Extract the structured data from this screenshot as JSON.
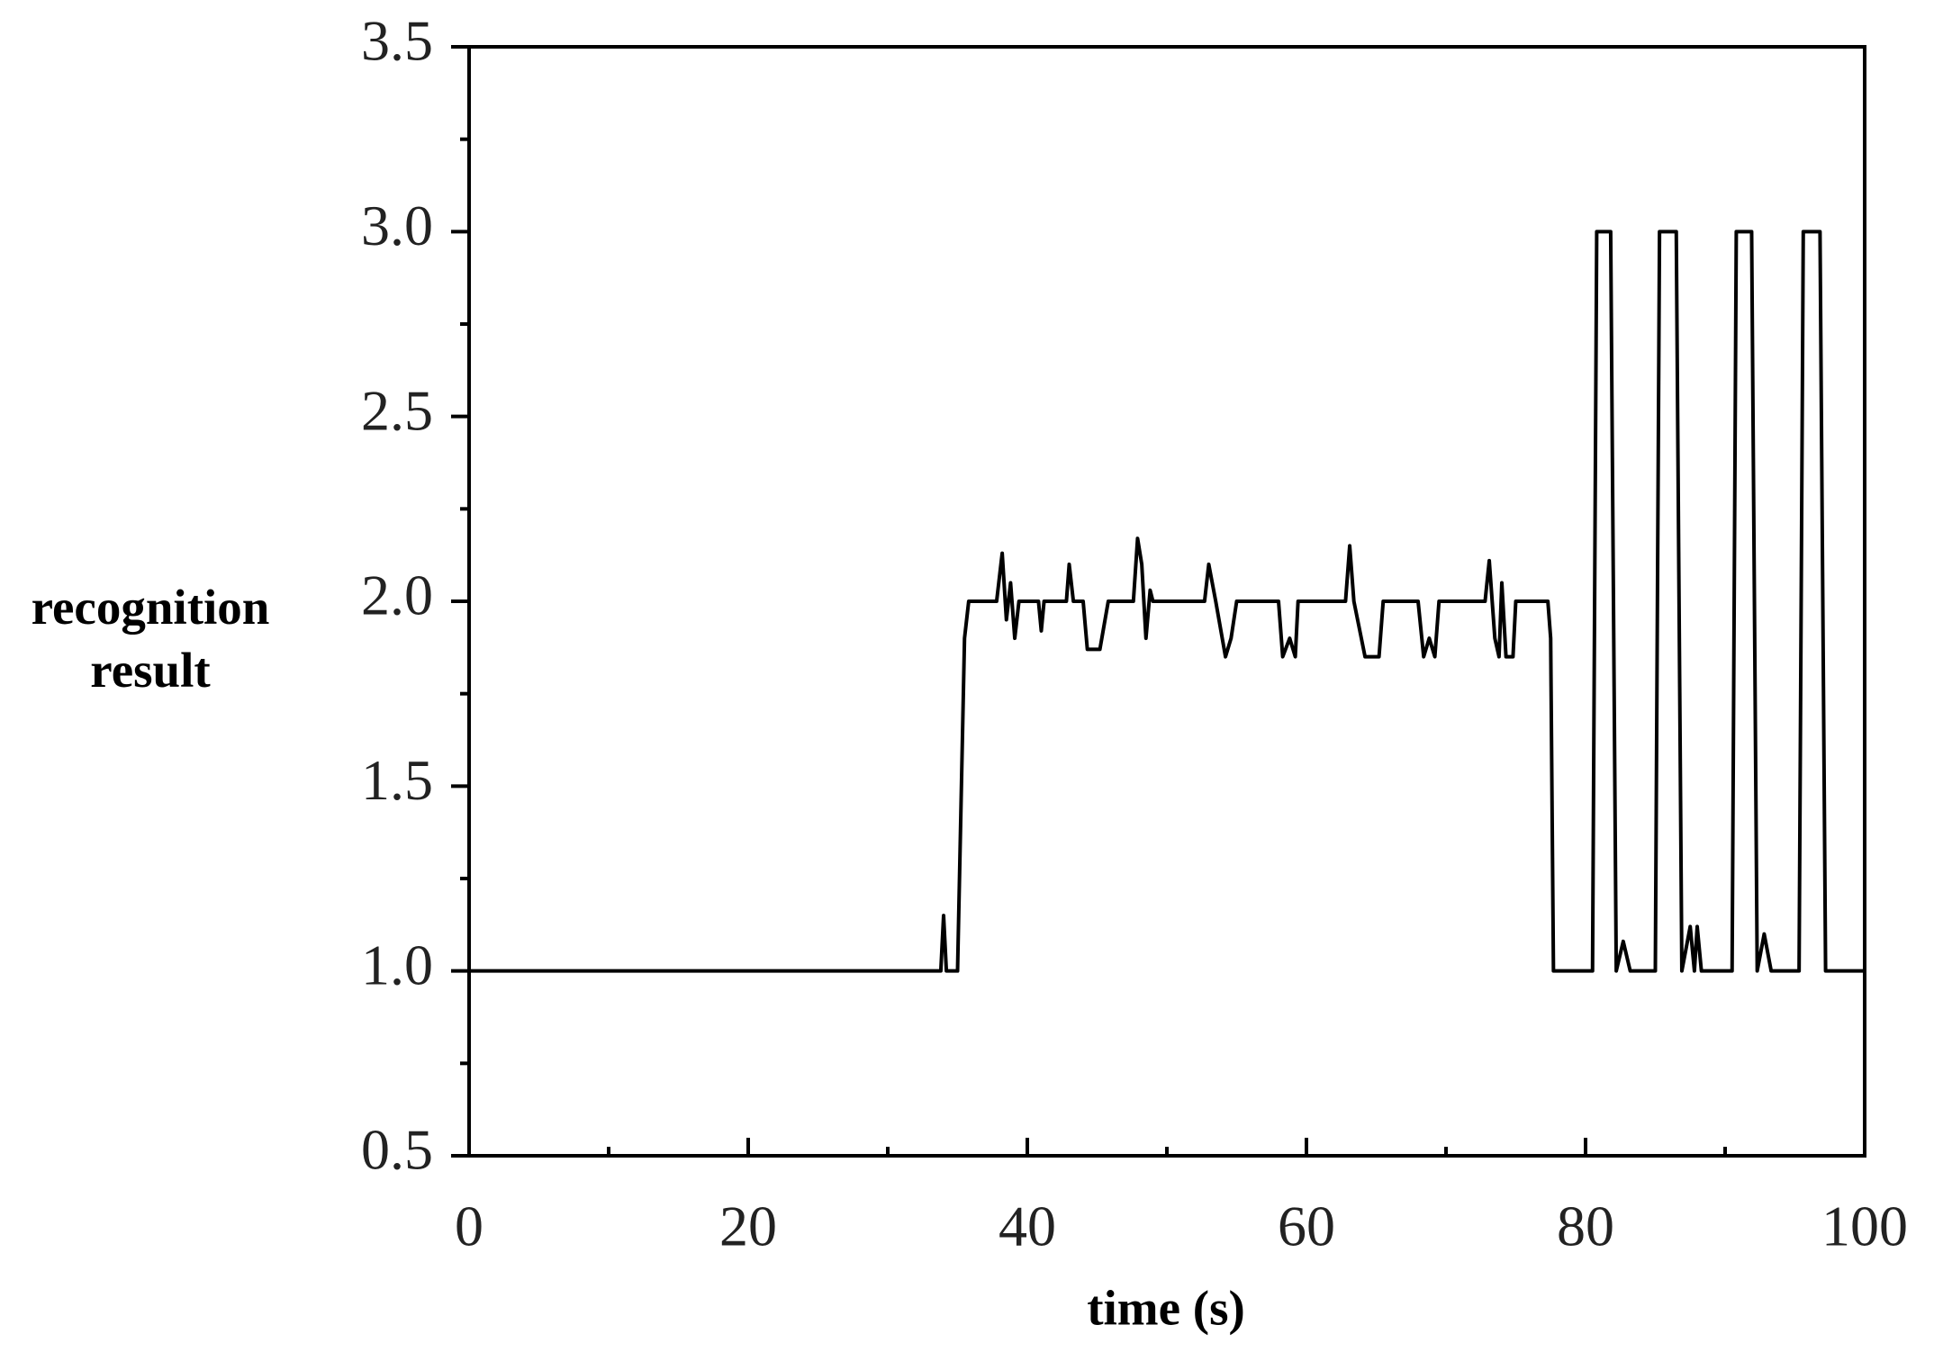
{
  "chart_data": {
    "type": "line",
    "x_label": "time (s)",
    "y_label": "recognition result",
    "xlim": [
      0,
      100
    ],
    "xticks": [
      0,
      20,
      40,
      60,
      80,
      100
    ],
    "xminorticks": [
      10,
      30,
      50,
      70,
      90
    ],
    "ylim": [
      0.5,
      3.5
    ],
    "yticks": [
      {
        "value": 0.5,
        "label": "0.5"
      },
      {
        "value": 1,
        "label": "1.0"
      },
      1.5,
      {
        "value": 2,
        "label": "2.0"
      },
      2.5,
      {
        "value": 3,
        "label": "3.0"
      },
      3.5
    ],
    "yminorticks": [
      0.75,
      1.25,
      1.75,
      2.25,
      2.75,
      3.25
    ],
    "grid": false,
    "series": [
      {
        "color": "#000000",
        "x": [
          0,
          32,
          33.8,
          34,
          34.2,
          35,
          35.5,
          35.8,
          37.8,
          38.2,
          38.5,
          38.8,
          39.1,
          39.4,
          40.8,
          41,
          41.2,
          42.8,
          43,
          43.3,
          44,
          44.3,
          45.2,
          45.8,
          47.6,
          47.9,
          48.2,
          48.5,
          48.8,
          49,
          52.7,
          53,
          53.5,
          54.2,
          54.6,
          55,
          58,
          58.3,
          58.8,
          59.2,
          59.4,
          62.8,
          63.1,
          63.4,
          64.2,
          65.2,
          65.5,
          68,
          68.4,
          68.8,
          69.2,
          69.5,
          72.8,
          73.1,
          73.5,
          73.8,
          74,
          74.3,
          74.8,
          75,
          77.3,
          77.5,
          77.7,
          80.5,
          80.8,
          81.8,
          82.2,
          82.7,
          83.2,
          85,
          85.3,
          86.5,
          86.9,
          87.5,
          87.8,
          88,
          88.3,
          90.5,
          90.8,
          91.9,
          92.3,
          92.8,
          93.3,
          95.3,
          95.6,
          96.8,
          97.2,
          100
        ],
        "values": [
          1,
          1,
          1,
          1.15,
          1,
          1,
          1.9,
          2,
          2,
          2.13,
          1.95,
          2.05,
          1.9,
          2,
          2,
          1.92,
          2,
          2,
          2.1,
          2,
          2,
          1.87,
          1.87,
          2,
          2,
          2.17,
          2.1,
          1.9,
          2.03,
          2,
          2,
          2.1,
          2,
          1.85,
          1.9,
          2,
          2,
          1.85,
          1.9,
          1.85,
          2,
          2,
          2.15,
          2,
          1.85,
          1.85,
          2,
          2,
          1.85,
          1.9,
          1.85,
          2,
          2,
          2.11,
          1.9,
          1.85,
          2.05,
          1.85,
          1.85,
          2,
          2,
          1.9,
          1,
          1,
          3,
          3,
          1,
          1.08,
          1,
          1,
          3,
          3,
          1,
          1.12,
          1,
          1.12,
          1,
          1,
          3,
          3,
          1,
          1.1,
          1,
          1,
          3,
          3,
          1,
          1
        ]
      }
    ]
  }
}
